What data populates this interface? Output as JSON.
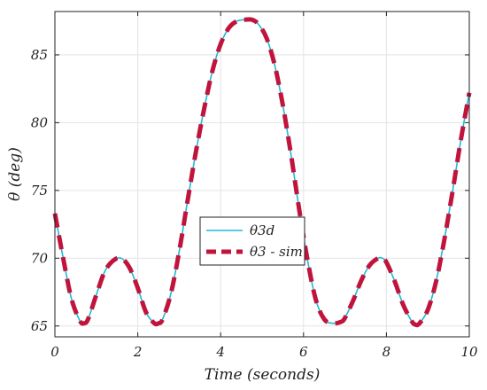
{
  "chart_data": {
    "type": "line",
    "title": "",
    "xlabel": "Time (seconds)",
    "ylabel": "θ (deg)",
    "xlim": [
      0,
      10
    ],
    "ylim": [
      64.2,
      88.2
    ],
    "grid": true,
    "legend_position": "center",
    "x_ticks": [
      {
        "value": 0,
        "label": "0"
      },
      {
        "value": 2,
        "label": "2"
      },
      {
        "value": 4,
        "label": "4"
      },
      {
        "value": 6,
        "label": "6"
      },
      {
        "value": 8,
        "label": "8"
      },
      {
        "value": 10,
        "label": "10"
      }
    ],
    "y_ticks": [
      {
        "value": 65,
        "label": "65"
      },
      {
        "value": 70,
        "label": "70"
      },
      {
        "value": 75,
        "label": "75"
      },
      {
        "value": 80,
        "label": "80"
      },
      {
        "value": 85,
        "label": "85"
      }
    ],
    "x": [
      0,
      0.2,
      0.4,
      0.6,
      0.7,
      0.8,
      1.0,
      1.2,
      1.4,
      1.6,
      1.8,
      2.0,
      2.2,
      2.4,
      2.5,
      2.6,
      2.8,
      3.0,
      3.2,
      3.4,
      3.6,
      3.8,
      4.0,
      4.2,
      4.4,
      4.6,
      4.75,
      4.9,
      5.1,
      5.3,
      5.5,
      5.7,
      5.9,
      6.1,
      6.3,
      6.5,
      6.7,
      6.9,
      7.0,
      7.2,
      7.4,
      7.6,
      7.8,
      7.9,
      8.0,
      8.2,
      8.4,
      8.6,
      8.7,
      8.8,
      9.0,
      9.2,
      9.4,
      9.6,
      9.8,
      10.0
    ],
    "series": [
      {
        "name": "θ3d",
        "color": "#1fb8d6",
        "style": "solid",
        "values": [
          73.3,
          70.0,
          67.0,
          65.4,
          65.2,
          65.5,
          67.3,
          69.0,
          69.8,
          70.0,
          69.3,
          67.8,
          66.0,
          65.2,
          65.2,
          65.5,
          67.4,
          70.5,
          74.2,
          77.8,
          81.0,
          83.8,
          85.8,
          87.0,
          87.5,
          87.6,
          87.6,
          87.3,
          86.3,
          84.3,
          81.3,
          77.6,
          73.5,
          69.8,
          66.9,
          65.5,
          65.2,
          65.3,
          65.6,
          66.9,
          68.4,
          69.5,
          70.0,
          70.0,
          69.7,
          68.3,
          66.6,
          65.4,
          65.1,
          65.2,
          66.2,
          68.3,
          71.4,
          75.0,
          78.8,
          82.2
        ]
      },
      {
        "name": "θ3 - sim",
        "color": "#c0143c",
        "style": "dashed",
        "values": [
          73.3,
          70.0,
          67.0,
          65.4,
          65.2,
          65.5,
          67.3,
          69.0,
          69.8,
          70.0,
          69.3,
          67.8,
          66.0,
          65.2,
          65.2,
          65.5,
          67.4,
          70.5,
          74.2,
          77.8,
          81.0,
          83.8,
          85.8,
          87.0,
          87.5,
          87.6,
          87.6,
          87.3,
          86.3,
          84.3,
          81.3,
          77.6,
          73.5,
          69.8,
          66.9,
          65.5,
          65.2,
          65.3,
          65.6,
          66.9,
          68.4,
          69.5,
          70.0,
          70.0,
          69.7,
          68.3,
          66.6,
          65.4,
          65.1,
          65.2,
          66.2,
          68.3,
          71.4,
          75.0,
          78.8,
          82.2
        ]
      }
    ]
  }
}
